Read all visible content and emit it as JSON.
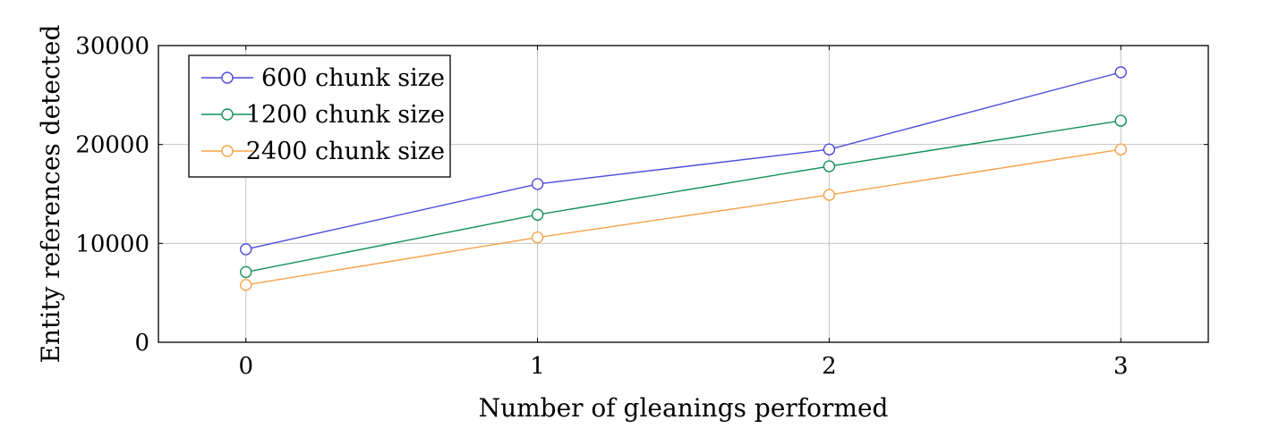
{
  "chart_data": {
    "type": "line",
    "title": "",
    "xlabel": "Number of gleanings performed",
    "ylabel": "Entity references detected",
    "x": [
      0,
      1,
      2,
      3
    ],
    "xlim": [
      -0.3,
      3.3
    ],
    "ylim": [
      0,
      30000
    ],
    "xticks": [
      "0",
      "1",
      "2",
      "3"
    ],
    "yticks": [
      "0",
      "10000",
      "20000",
      "30000"
    ],
    "grid": true,
    "legend_position": "top-left",
    "marker": "circle",
    "series": [
      {
        "name": "600 chunk size",
        "color": "#4b4bdc",
        "values": [
          9400,
          16000,
          19500,
          27300
        ]
      },
      {
        "name": "1200 chunk size",
        "color": "#13905a",
        "values": [
          7100,
          12900,
          17800,
          22400
        ]
      },
      {
        "name": "2400 chunk size",
        "color": "#f5a34a",
        "values": [
          5800,
          10600,
          14900,
          19500
        ]
      }
    ]
  }
}
